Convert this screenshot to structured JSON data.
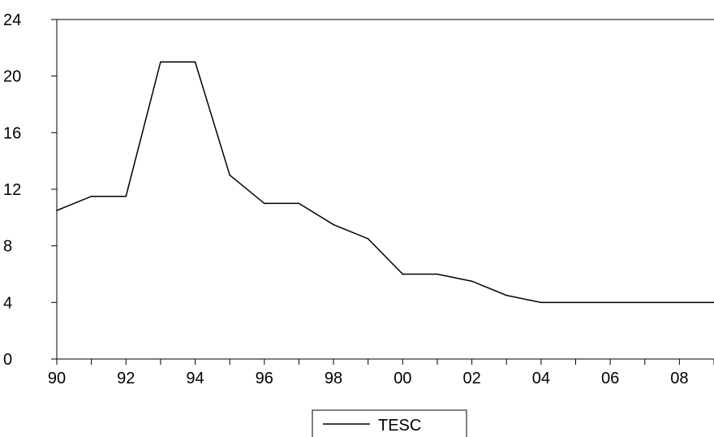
{
  "chart_data": {
    "type": "line",
    "x_tick_labels": [
      "90",
      "92",
      "94",
      "96",
      "98",
      "00",
      "02",
      "04",
      "06",
      "08"
    ],
    "x": [
      1990,
      1991,
      1992,
      1993,
      1994,
      1995,
      1996,
      1997,
      1998,
      1999,
      2000,
      2001,
      2002,
      2003,
      2004,
      2005,
      2006,
      2007,
      2008,
      2009
    ],
    "xlim": [
      1990,
      2009
    ],
    "ylim": [
      0,
      24
    ],
    "y_ticks": [
      0,
      4,
      8,
      12,
      16,
      20,
      24
    ],
    "series": [
      {
        "name": "TESC",
        "color": "#000000",
        "values": [
          10.5,
          11.5,
          11.5,
          21,
          21,
          13,
          11,
          11,
          9.5,
          8.5,
          6,
          6,
          5.5,
          4.5,
          4,
          4,
          4,
          4,
          4,
          4
        ]
      }
    ],
    "legend_position": "bottom-center",
    "grid": false
  }
}
